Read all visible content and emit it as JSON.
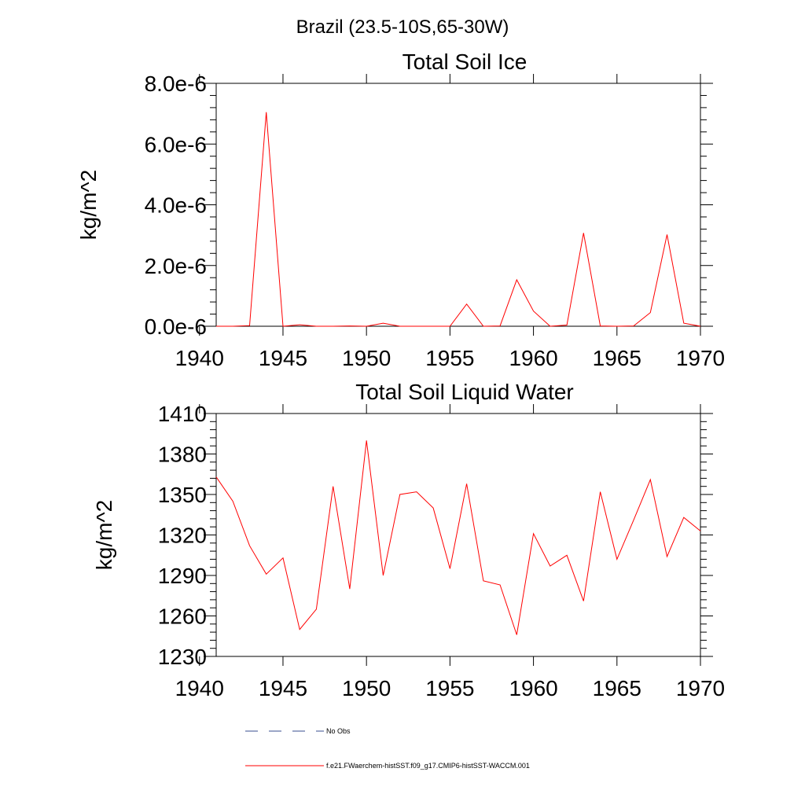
{
  "figure": {
    "main_title": "Brazil (23.5-10S,65-30W)"
  },
  "legend": {
    "obs_label": "No Obs",
    "model_label": "f.e21.FWaerchem-histSST.f09_g17.CMIP6-histSST-WACCM.001",
    "obs_color": "#3a4d8f",
    "model_color": "#ff0000"
  },
  "chart_data": [
    {
      "type": "line",
      "title": "Total Soil Ice",
      "ylabel": "kg/m^2",
      "xlabel": "",
      "xlim": [
        1941,
        1970
      ],
      "ylim": [
        0,
        8e-06
      ],
      "grid": false,
      "x_ticks": [
        1940,
        1945,
        1950,
        1955,
        1960,
        1965,
        1970
      ],
      "x_tick_labels": [
        "1940",
        "1945",
        "1950",
        "1955",
        "1960",
        "1965",
        "1970"
      ],
      "y_ticks": [
        0,
        2e-06,
        4e-06,
        6e-06,
        8e-06
      ],
      "y_tick_labels": [
        "0.0e-6",
        "2.0e-6",
        "4.0e-6",
        "6.0e-6",
        "8.0e-6"
      ],
      "x": [
        1941,
        1942,
        1943,
        1944,
        1945,
        1946,
        1947,
        1948,
        1949,
        1950,
        1951,
        1952,
        1953,
        1954,
        1955,
        1956,
        1957,
        1958,
        1959,
        1960,
        1961,
        1962,
        1963,
        1964,
        1965,
        1966,
        1967,
        1968,
        1969,
        1970
      ],
      "series": [
        {
          "name": "f.e21.FWaerchem-histSST.f09_g17.CMIP6-histSST-WACCM.001",
          "color": "#ff0000",
          "values": [
            0.0,
            0.0,
            2e-08,
            7.05e-06,
            0.0,
            5e-08,
            0.0,
            0.0,
            1e-08,
            0.0,
            1e-07,
            0.0,
            0.0,
            0.0,
            0.0,
            7.3e-07,
            0.0,
            1e-08,
            1.53e-06,
            5e-07,
            0.0,
            4e-08,
            3.07e-06,
            1e-08,
            0.0,
            1e-08,
            4.5e-07,
            3.02e-06,
            1e-07,
            0.0
          ]
        }
      ]
    },
    {
      "type": "line",
      "title": "Total Soil Liquid Water",
      "ylabel": "kg/m^2",
      "xlabel": "",
      "xlim": [
        1941,
        1970
      ],
      "ylim": [
        1230,
        1410
      ],
      "grid": false,
      "x_ticks": [
        1940,
        1945,
        1950,
        1955,
        1960,
        1965,
        1970
      ],
      "x_tick_labels": [
        "1940",
        "1945",
        "1950",
        "1955",
        "1960",
        "1965",
        "1970"
      ],
      "y_ticks": [
        1230,
        1260,
        1290,
        1320,
        1350,
        1380,
        1410
      ],
      "y_tick_labels": [
        "1230",
        "1260",
        "1290",
        "1320",
        "1350",
        "1380",
        "1410"
      ],
      "x": [
        1941,
        1942,
        1943,
        1944,
        1945,
        1946,
        1947,
        1948,
        1949,
        1950,
        1951,
        1952,
        1953,
        1954,
        1955,
        1956,
        1957,
        1958,
        1959,
        1960,
        1961,
        1962,
        1963,
        1964,
        1965,
        1966,
        1967,
        1968,
        1969,
        1970
      ],
      "series": [
        {
          "name": "f.e21.FWaerchem-histSST.f09_g17.CMIP6-histSST-WACCM.001",
          "color": "#ff0000",
          "values": [
            1363,
            1345,
            1312,
            1291,
            1303,
            1250,
            1265,
            1356,
            1280,
            1390,
            1290,
            1350,
            1352,
            1340,
            1295,
            1358,
            1286,
            1283,
            1246,
            1321,
            1297,
            1305,
            1271,
            1352,
            1302,
            1331,
            1361,
            1304,
            1333,
            1323
          ]
        }
      ]
    }
  ]
}
